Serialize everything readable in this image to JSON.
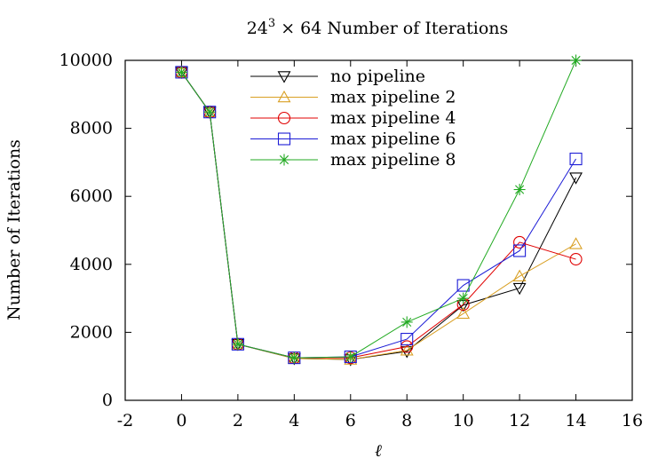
{
  "chart_data": {
    "type": "line",
    "title": {
      "base": "24",
      "sup": "3",
      "rest": " × 64 Number of Iterations"
    },
    "xlabel": "ℓ",
    "ylabel": "Number of Iterations",
    "xlim": [
      -2,
      16
    ],
    "ylim": [
      0,
      10000
    ],
    "xticks": [
      -2,
      0,
      2,
      4,
      6,
      8,
      10,
      12,
      14,
      16
    ],
    "yticks": [
      0,
      2000,
      4000,
      6000,
      8000,
      10000
    ],
    "grid": false,
    "legend_position": "top-center",
    "series": [
      {
        "name": "no pipeline",
        "color": "#000000",
        "marker": "triangle-down",
        "x": [
          0,
          1,
          2,
          4,
          6,
          8,
          10,
          12,
          14
        ],
        "y": [
          9650,
          8480,
          1650,
          1230,
          1200,
          1440,
          2800,
          3300,
          6550
        ]
      },
      {
        "name": "max pipeline 2",
        "color": "#d9a024",
        "marker": "triangle-up",
        "x": [
          0,
          1,
          2,
          4,
          6,
          8,
          10,
          12,
          14
        ],
        "y": [
          9650,
          8480,
          1650,
          1230,
          1200,
          1470,
          2550,
          3650,
          4600
        ]
      },
      {
        "name": "max pipeline 4",
        "color": "#e00000",
        "marker": "circle",
        "x": [
          0,
          1,
          2,
          4,
          6,
          8,
          10,
          12,
          14
        ],
        "y": [
          9650,
          8480,
          1650,
          1250,
          1250,
          1580,
          2820,
          4650,
          4150
        ]
      },
      {
        "name": "max pipeline 6",
        "color": "#1c1cd6",
        "marker": "square",
        "x": [
          0,
          1,
          2,
          4,
          6,
          8,
          10,
          12,
          14
        ],
        "y": [
          9650,
          8480,
          1650,
          1250,
          1280,
          1800,
          3380,
          4400,
          7100
        ]
      },
      {
        "name": "max pipeline 8",
        "color": "#22aa22",
        "marker": "star",
        "x": [
          0,
          1,
          2,
          4,
          6,
          8,
          10,
          12,
          14
        ],
        "y": [
          9650,
          8480,
          1650,
          1250,
          1280,
          2300,
          3000,
          6200,
          10000
        ]
      }
    ]
  }
}
